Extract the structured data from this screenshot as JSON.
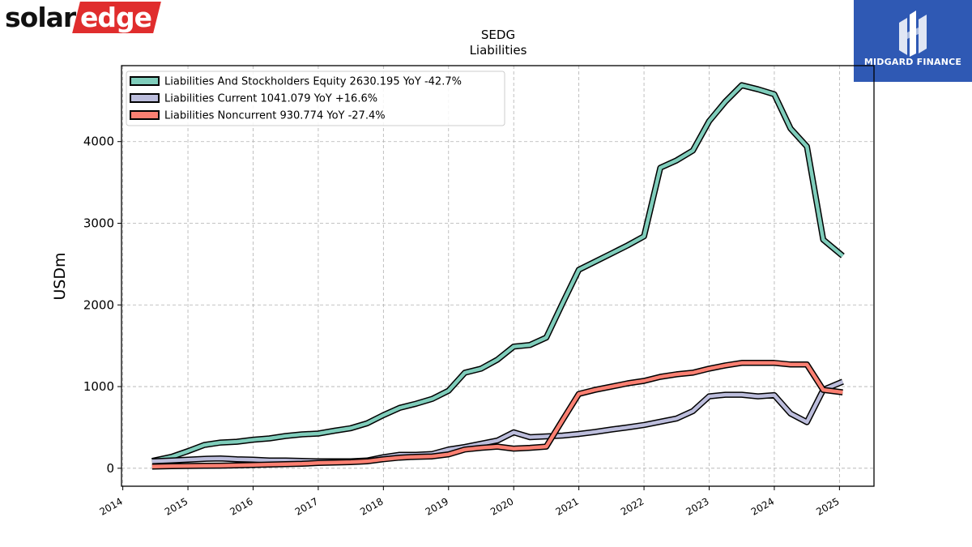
{
  "logos": {
    "solar": {
      "part1": "solar",
      "part2": "edge",
      "accent": "#e02d2d"
    },
    "midgard": {
      "name": "MIDGARD FINANCE",
      "bg": "#2f59b4"
    }
  },
  "chart_data": {
    "type": "line",
    "title": "SEDG",
    "subtitle": "Liabilities",
    "xlabel": "",
    "ylabel": "USDm",
    "xlim": [
      2013.98,
      2025.53
    ],
    "ylim": [
      -220,
      4930
    ],
    "x_ticks": [
      2014,
      2015,
      2016,
      2017,
      2018,
      2019,
      2020,
      2021,
      2022,
      2023,
      2024,
      2025
    ],
    "x_tick_labels": [
      "2014",
      "2015",
      "2016",
      "2017",
      "2018",
      "2019",
      "2020",
      "2021",
      "2022",
      "2023",
      "2024",
      "2025"
    ],
    "y_ticks": [
      0,
      1000,
      2000,
      3000,
      4000
    ],
    "y_tick_labels": [
      "0",
      "1000",
      "2000",
      "3000",
      "4000"
    ],
    "grid": true,
    "legend_position": "top-left",
    "series": [
      {
        "name": "Liabilities And Stockholders Equity",
        "legend_label": "Liabilities And Stockholders Equity  2630.195 YoY -42.7%",
        "color": "#7fcdbb",
        "x": [
          2014.45,
          2014.75,
          2015.0,
          2015.25,
          2015.5,
          2015.75,
          2016.0,
          2016.25,
          2016.5,
          2016.75,
          2017.0,
          2017.25,
          2017.5,
          2017.75,
          2018.0,
          2018.25,
          2018.5,
          2018.75,
          2019.0,
          2019.25,
          2019.5,
          2019.75,
          2020.0,
          2020.25,
          2020.5,
          2020.75,
          2021.0,
          2021.25,
          2021.5,
          2021.75,
          2022.0,
          2022.25,
          2022.5,
          2022.75,
          2023.0,
          2023.25,
          2023.5,
          2023.75,
          2024.0,
          2024.25,
          2024.5,
          2024.75,
          2025.05
        ],
        "values": [
          90,
          140,
          210,
          285,
          315,
          325,
          350,
          365,
          395,
          415,
          425,
          460,
          490,
          550,
          650,
          740,
          790,
          850,
          950,
          1170,
          1220,
          1330,
          1490,
          1510,
          1600,
          2020,
          2430,
          2530,
          2630,
          2730,
          2840,
          3680,
          3770,
          3890,
          4250,
          4490,
          4690,
          4640,
          4580,
          4160,
          3940,
          2800,
          2600
        ]
      },
      {
        "name": "Liabilities Current",
        "legend_label": "Liabilities Current  1041.079 YoY +16.6%",
        "color": "#bcbddc",
        "x": [
          2014.45,
          2014.75,
          2015.0,
          2015.25,
          2015.5,
          2015.75,
          2016.0,
          2016.25,
          2016.5,
          2016.75,
          2017.0,
          2017.25,
          2017.5,
          2017.75,
          2018.0,
          2018.25,
          2018.5,
          2018.75,
          2019.0,
          2019.25,
          2019.5,
          2019.75,
          2020.0,
          2020.25,
          2020.5,
          2020.75,
          2021.0,
          2021.25,
          2021.5,
          2021.75,
          2022.0,
          2022.25,
          2022.5,
          2022.75,
          2023.0,
          2023.25,
          2023.5,
          2023.75,
          2024.0,
          2024.25,
          2024.5,
          2024.75,
          2025.05
        ],
        "values": [
          85,
          95,
          105,
          115,
          120,
          110,
          105,
          95,
          95,
          90,
          85,
          85,
          85,
          95,
          135,
          165,
          165,
          175,
          230,
          260,
          300,
          340,
          440,
          380,
          390,
          400,
          420,
          445,
          475,
          500,
          530,
          570,
          610,
          700,
          880,
          900,
          900,
          880,
          895,
          670,
          565,
          960,
          1060
        ]
      },
      {
        "name": "Liabilities Noncurrent",
        "legend_label": "Liabilities Noncurrent  930.774 YoY -27.4%",
        "color": "#fb8072",
        "x": [
          2014.45,
          2014.75,
          2015.0,
          2015.25,
          2015.5,
          2015.75,
          2016.0,
          2016.25,
          2016.5,
          2016.75,
          2017.0,
          2017.25,
          2017.5,
          2017.75,
          2018.0,
          2018.25,
          2018.5,
          2018.75,
          2019.0,
          2019.25,
          2019.5,
          2019.75,
          2020.0,
          2020.25,
          2020.5,
          2020.75,
          2021.0,
          2021.25,
          2021.5,
          2021.75,
          2022.0,
          2022.25,
          2022.5,
          2022.75,
          2023.0,
          2023.25,
          2023.5,
          2023.75,
          2024.0,
          2024.25,
          2024.5,
          2024.75,
          2025.05
        ],
        "values": [
          20,
          25,
          28,
          30,
          32,
          35,
          40,
          45,
          50,
          55,
          65,
          70,
          75,
          85,
          110,
          130,
          140,
          145,
          170,
          230,
          250,
          265,
          240,
          250,
          265,
          590,
          910,
          960,
          1000,
          1040,
          1070,
          1120,
          1150,
          1170,
          1220,
          1260,
          1290,
          1290,
          1290,
          1270,
          1270,
          960,
          930
        ]
      }
    ]
  }
}
